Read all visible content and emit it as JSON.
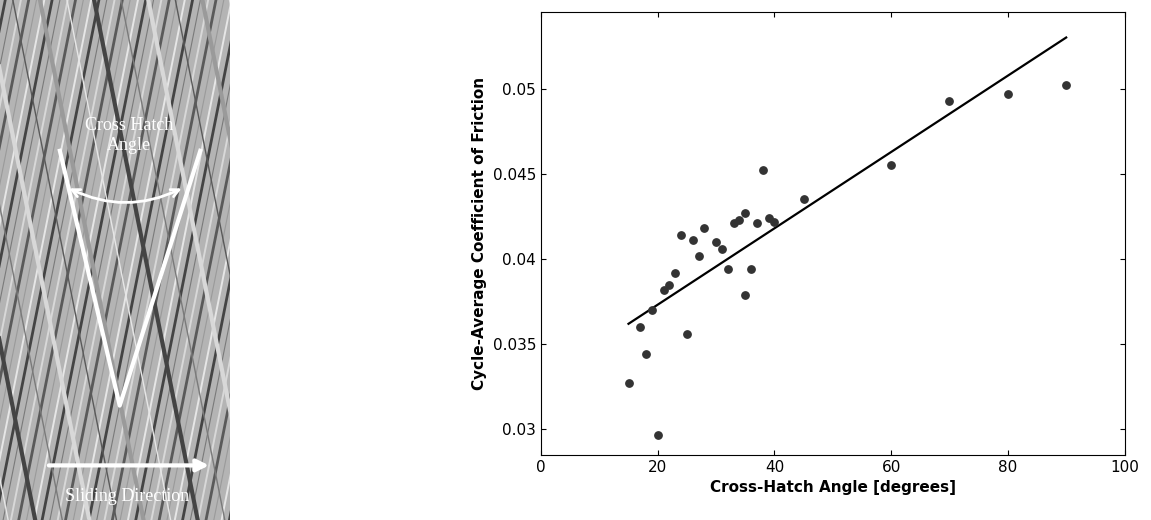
{
  "image": {
    "annotations": {
      "angle_label": "Cross Hatch\nAngle",
      "direction_label": "Sliding Direction"
    }
  },
  "chart_data": {
    "type": "scatter",
    "xlabel": "Cross-Hatch Angle [degrees]",
    "ylabel": "Cycle-Average Coefficient of Friction",
    "xlim": [
      0,
      100
    ],
    "xticks": [
      0,
      20,
      40,
      60,
      80,
      100
    ],
    "ylim": [
      0.0285,
      0.0545
    ],
    "yticks": [
      0.03,
      0.035,
      0.04,
      0.045,
      0.05
    ],
    "grid": false,
    "series": [
      {
        "type": "scatter",
        "color": "#333333",
        "marker": "o",
        "x": [
          15,
          17,
          18,
          19,
          20,
          21,
          22,
          23,
          24,
          25,
          26,
          27,
          28,
          30,
          31,
          32,
          33,
          34,
          35,
          35,
          36,
          37,
          38,
          39,
          40,
          45,
          60,
          70,
          80,
          90
        ],
        "values": [
          0.0327,
          0.036,
          0.0344,
          0.037,
          0.0297,
          0.0382,
          0.0385,
          0.0392,
          0.0414,
          0.0356,
          0.0411,
          0.0402,
          0.0418,
          0.041,
          0.0406,
          0.0394,
          0.0421,
          0.0423,
          0.0427,
          0.0379,
          0.0394,
          0.0421,
          0.0452,
          0.0424,
          0.0422,
          0.0435,
          0.0455,
          0.0493,
          0.0497,
          0.0502
        ]
      },
      {
        "type": "line",
        "color": "#000000",
        "line_style": "solid",
        "x": [
          15,
          90
        ],
        "values": [
          0.0362,
          0.053
        ]
      }
    ]
  }
}
